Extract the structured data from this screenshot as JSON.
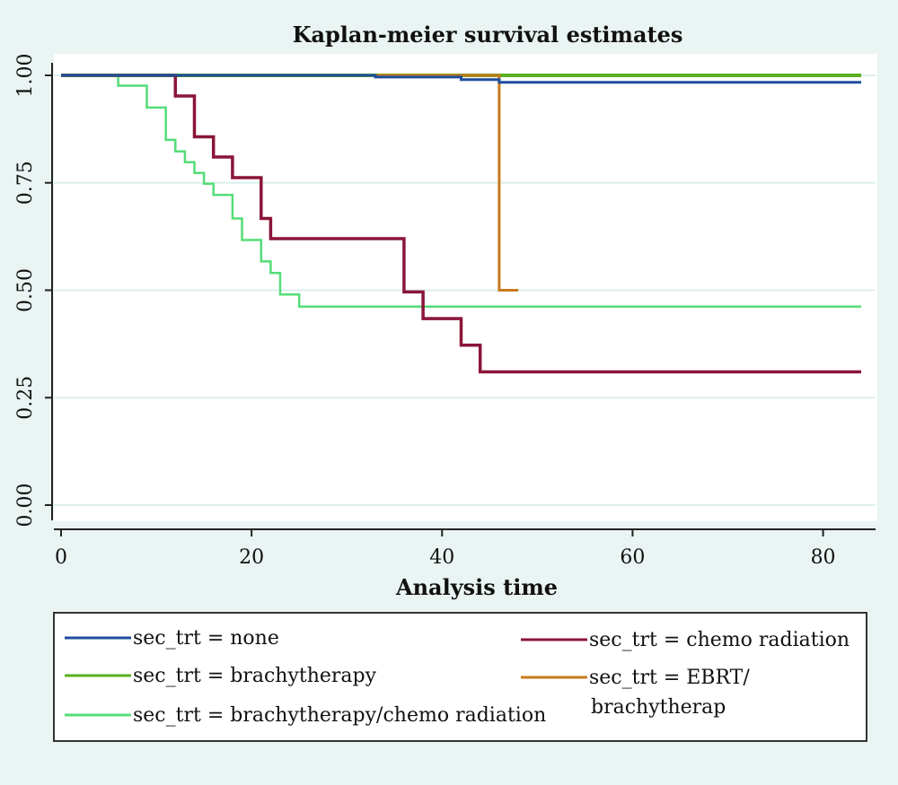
{
  "chart_data": {
    "type": "line",
    "title": "Kaplan-meier survival estimates",
    "xlabel": "Analysis time",
    "ylabel": "",
    "xlim": [
      0,
      84
    ],
    "ylim": [
      0,
      1
    ],
    "xticks": [
      0,
      20,
      40,
      60,
      80
    ],
    "xtick_labels": [
      "0",
      "20",
      "40",
      "60",
      "80"
    ],
    "yticks": [
      0,
      0.25,
      0.5,
      0.75,
      1.0
    ],
    "ytick_labels": [
      "0.00",
      "0.25",
      "0.50",
      "0.75",
      "1.00"
    ],
    "grid": "horizontal",
    "legend_position": "bottom",
    "step": true,
    "series": [
      {
        "name": "sec_trt = none",
        "color": "#1f4e9c",
        "points": [
          [
            0,
            1.0
          ],
          [
            33,
            1.0
          ],
          [
            33,
            0.996
          ],
          [
            42,
            0.996
          ],
          [
            42,
            0.99
          ],
          [
            46,
            0.99
          ],
          [
            46,
            0.984
          ],
          [
            84,
            0.984
          ]
        ]
      },
      {
        "name": "sec_trt = brachytherapy",
        "color": "#5ab01e",
        "points": [
          [
            0,
            1.0
          ],
          [
            84,
            1.0
          ]
        ]
      },
      {
        "name": "sec_trt = brachytherapy/chemo radiation",
        "color": "#55dd77",
        "points": [
          [
            0,
            1.0
          ],
          [
            6,
            1.0
          ],
          [
            6,
            0.976
          ],
          [
            9,
            0.976
          ],
          [
            9,
            0.925
          ],
          [
            11,
            0.925
          ],
          [
            11,
            0.85
          ],
          [
            12,
            0.85
          ],
          [
            12,
            0.823
          ],
          [
            13,
            0.823
          ],
          [
            13,
            0.798
          ],
          [
            14,
            0.798
          ],
          [
            14,
            0.773
          ],
          [
            15,
            0.773
          ],
          [
            15,
            0.748
          ],
          [
            16,
            0.748
          ],
          [
            16,
            0.722
          ],
          [
            18,
            0.722
          ],
          [
            18,
            0.667
          ],
          [
            19,
            0.667
          ],
          [
            19,
            0.617
          ],
          [
            21,
            0.617
          ],
          [
            21,
            0.567
          ],
          [
            22,
            0.567
          ],
          [
            22,
            0.54
          ],
          [
            23,
            0.54
          ],
          [
            23,
            0.49
          ],
          [
            25,
            0.49
          ],
          [
            25,
            0.462
          ],
          [
            84,
            0.462
          ]
        ]
      },
      {
        "name": "sec_trt = chemo radiation",
        "color": "#8b1538",
        "points": [
          [
            0,
            1.0
          ],
          [
            12,
            1.0
          ],
          [
            12,
            0.952
          ],
          [
            14,
            0.952
          ],
          [
            14,
            0.857
          ],
          [
            16,
            0.857
          ],
          [
            16,
            0.81
          ],
          [
            18,
            0.81
          ],
          [
            18,
            0.762
          ],
          [
            21,
            0.762
          ],
          [
            21,
            0.667
          ],
          [
            22,
            0.667
          ],
          [
            22,
            0.62
          ],
          [
            36,
            0.62
          ],
          [
            36,
            0.496
          ],
          [
            38,
            0.496
          ],
          [
            38,
            0.434
          ],
          [
            42,
            0.434
          ],
          [
            42,
            0.372
          ],
          [
            44,
            0.372
          ],
          [
            44,
            0.31
          ],
          [
            84,
            0.31
          ]
        ]
      },
      {
        "name": "sec_trt = EBRT/ brachytherap",
        "color": "#c87a1e",
        "points": [
          [
            6,
            1.0
          ],
          [
            46,
            1.0
          ],
          [
            46,
            0.5
          ],
          [
            48,
            0.5
          ]
        ]
      }
    ]
  },
  "legend_rows": [
    {
      "left": 0,
      "right": 3
    },
    {
      "left": 1,
      "right": 4
    },
    {
      "left": 2,
      "right": null
    }
  ],
  "legend_extra": {
    "ebrt_line1": "sec_trt = EBRT/",
    "ebrt_line2": "brachytherap"
  }
}
